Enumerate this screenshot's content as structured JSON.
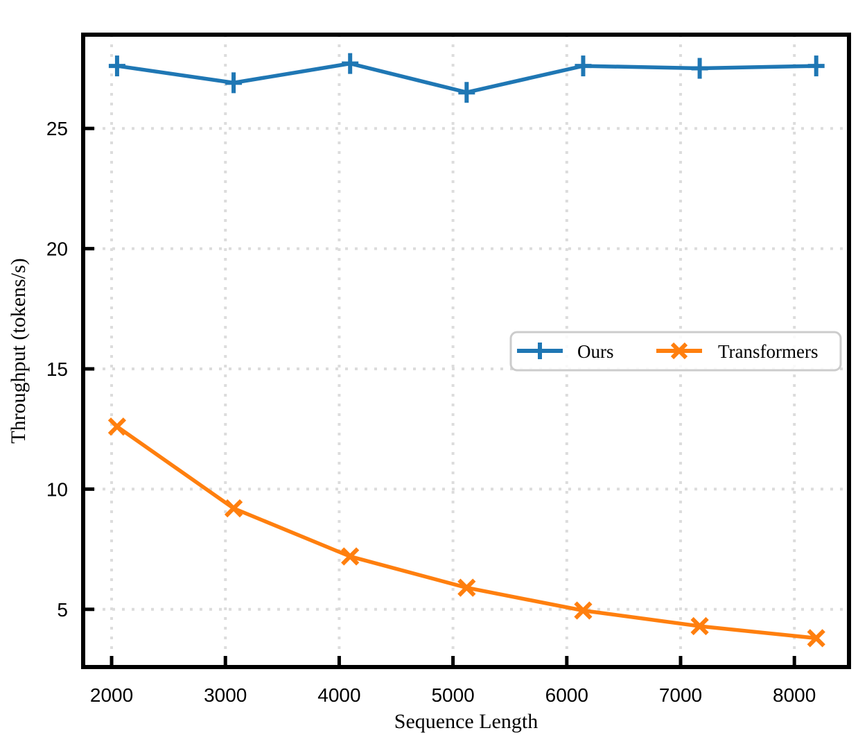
{
  "figure": {
    "background": "#ffffff"
  },
  "chart_data": {
    "type": "line",
    "title": "",
    "xlabel": "Sequence Length",
    "ylabel": "Throughput (tokens/s)",
    "x": [
      2048,
      3072,
      4096,
      5120,
      6144,
      7168,
      8192
    ],
    "series": [
      {
        "name": "Ours",
        "color": "#1f77b4",
        "marker": "plus",
        "values": [
          27.6,
          26.9,
          27.7,
          26.5,
          27.6,
          27.5,
          27.6
        ]
      },
      {
        "name": "Transformers",
        "color": "#ff7f0e",
        "marker": "x",
        "values": [
          12.6,
          9.2,
          7.2,
          5.9,
          4.95,
          4.3,
          3.8
        ]
      }
    ],
    "xticks": [
      2000,
      3000,
      4000,
      5000,
      6000,
      7000,
      8000
    ],
    "yticks": [
      5,
      10,
      15,
      20,
      25
    ],
    "xlim": [
      1750,
      8480
    ],
    "ylim": [
      2.6,
      28.9
    ],
    "grid": true,
    "grid_on": "both",
    "grid_style": "dotted",
    "grid_color": "#dcdcdc",
    "axis_color": "#000000",
    "legend": {
      "labels": [
        "Ours",
        "Transformers"
      ],
      "position": "center-right",
      "border_color": "#cccccc",
      "background": "#ffffff"
    }
  }
}
